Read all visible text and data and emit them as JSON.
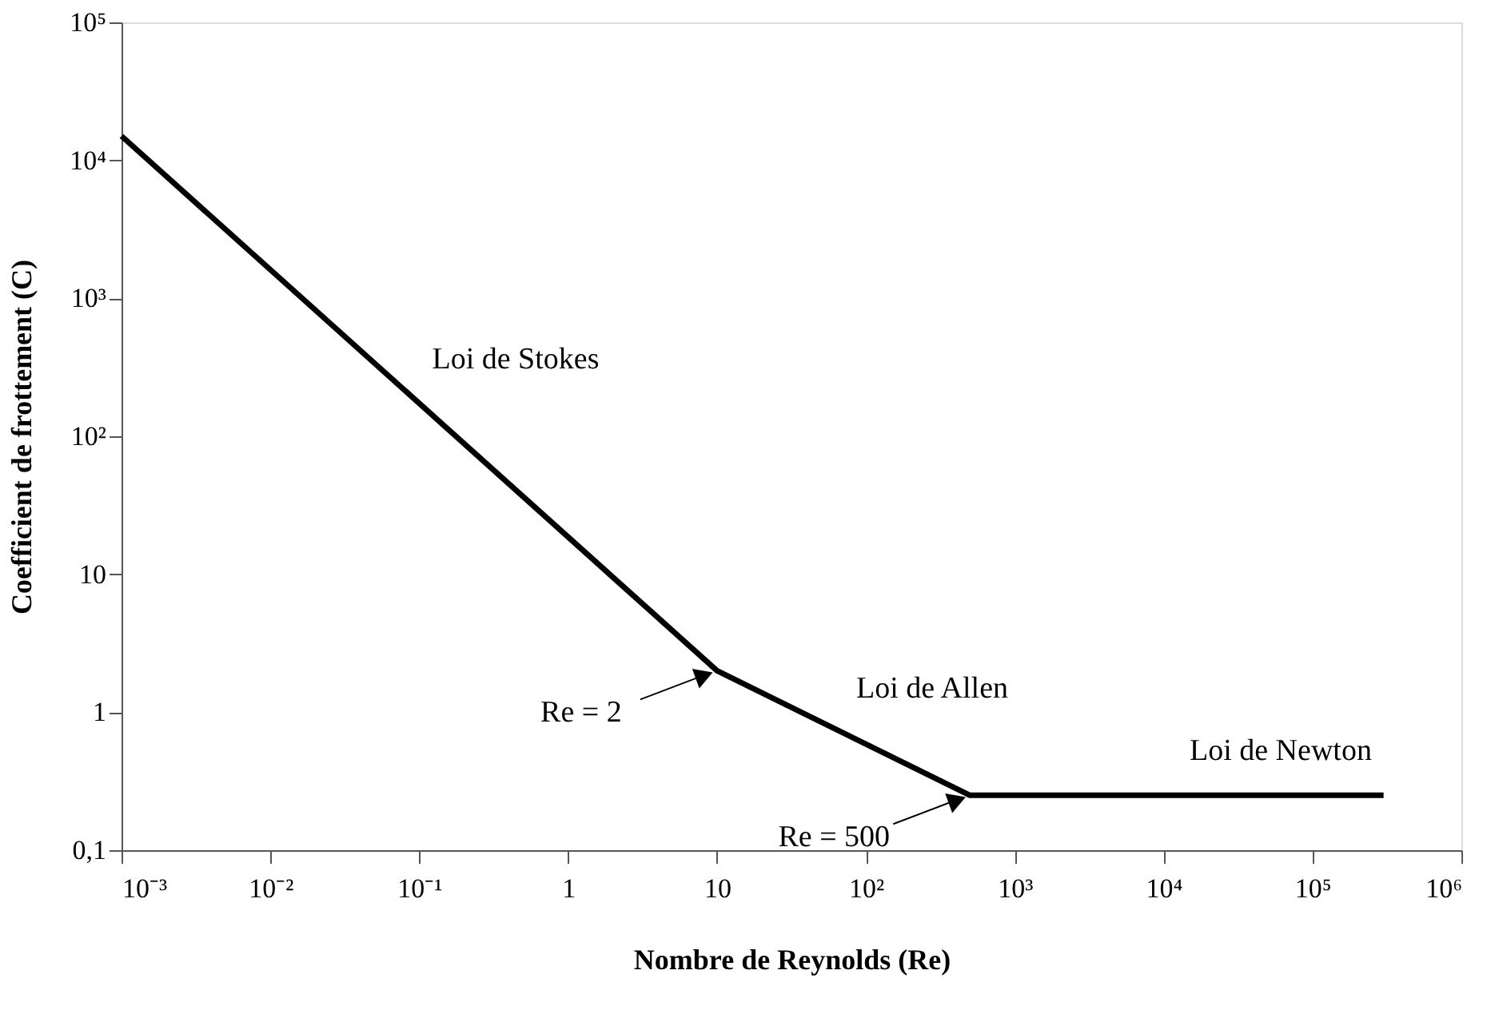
{
  "chart_data": {
    "type": "line",
    "xlabel": "Nombre de Reynolds (Re)",
    "ylabel": "Coefficient de frottement (C)",
    "x": [
      0.001,
      10,
      500,
      300000
    ],
    "series": [
      {
        "color": "#000000",
        "values": [
          15000,
          2,
          0.25,
          0.25
        ]
      }
    ],
    "log": "xy",
    "xlim": [
      0.001,
      1000000
    ],
    "ylim": [
      0.1,
      100000
    ],
    "xticks": [
      {
        "value": 0.001,
        "label": "10⁻³"
      },
      {
        "value": 0.01,
        "label": "10⁻²"
      },
      {
        "value": 0.1,
        "label": "10⁻¹"
      },
      1,
      10,
      {
        "value": 100,
        "label": "10²"
      },
      {
        "value": 1000,
        "label": "10³"
      },
      {
        "value": 10000,
        "label": "10⁴"
      },
      {
        "value": 100000,
        "label": "10⁵"
      },
      {
        "value": 1000000,
        "label": "10⁶"
      }
    ],
    "yticks": [
      {
        "value": 0.1,
        "label": "0,1"
      },
      1,
      10,
      {
        "value": 100,
        "label": "10²"
      },
      {
        "value": 1000,
        "label": "10³"
      },
      {
        "value": 10000,
        "label": "10⁴"
      },
      {
        "value": 100000,
        "label": "10⁵"
      }
    ],
    "grid": false,
    "marker": "none",
    "line_style": "solid",
    "annotations": [
      "Loi de Stokes",
      "Loi de Allen",
      "Loi de Newton",
      {
        "text": "Re = 2",
        "x": 10,
        "y": 2
      },
      {
        "text": "Re = 500",
        "x": 500,
        "y": 0.25
      }
    ]
  }
}
